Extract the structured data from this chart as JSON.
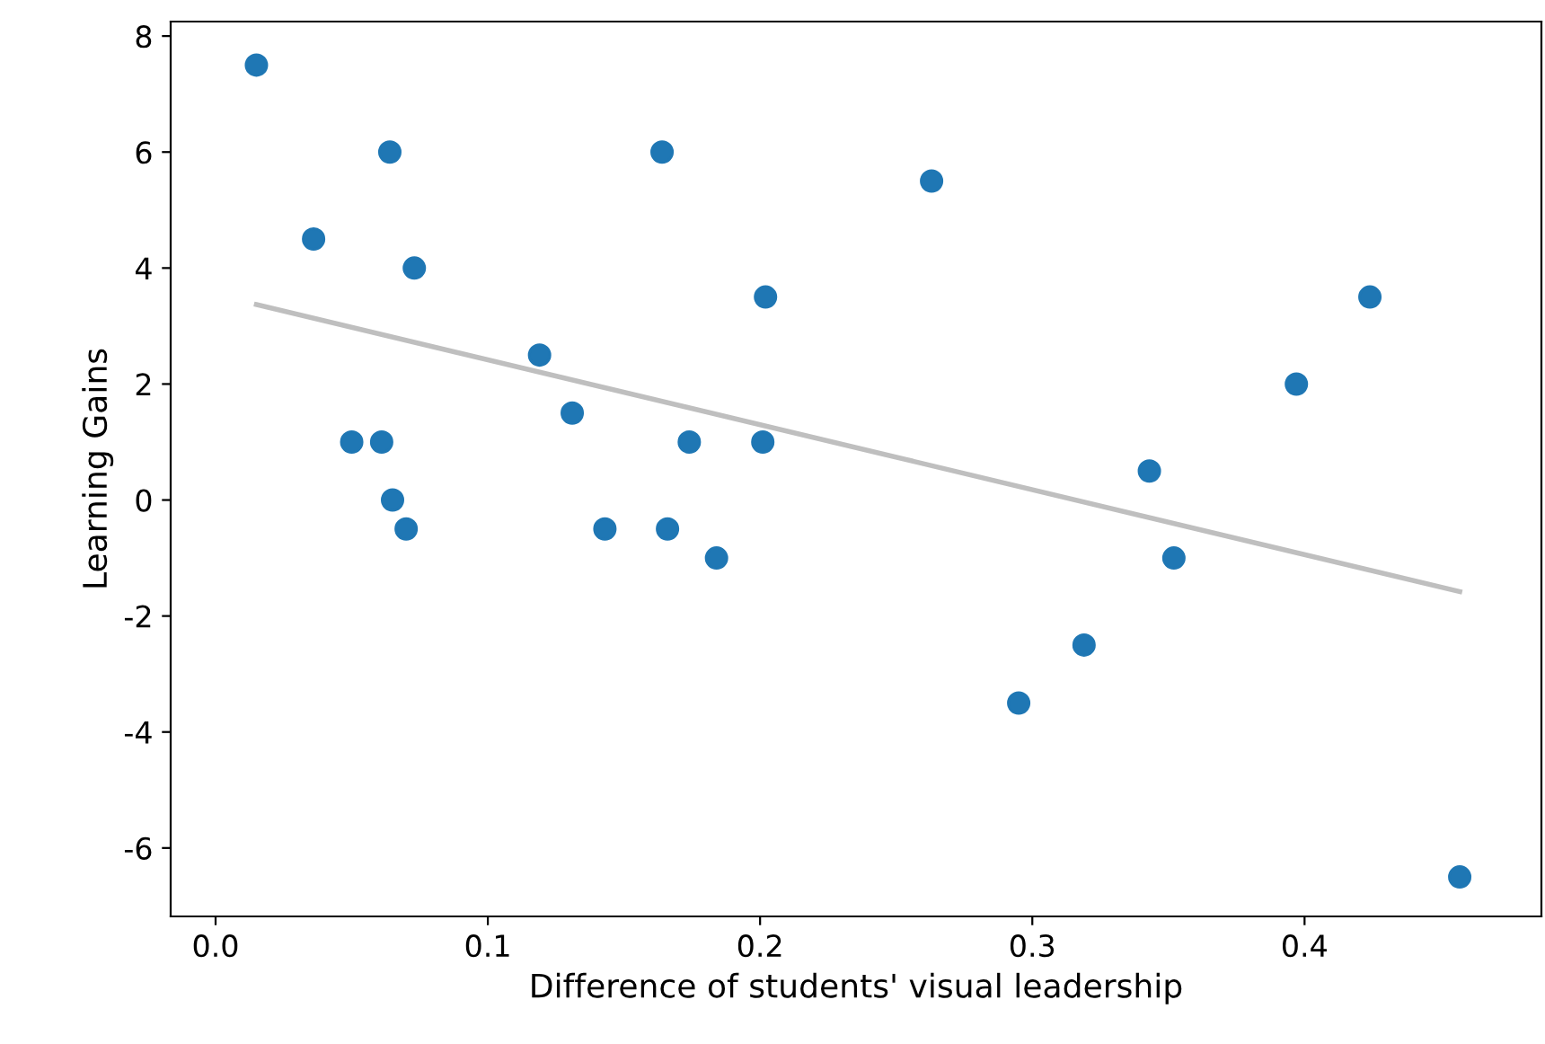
{
  "chart_data": {
    "type": "scatter",
    "xlabel": "Difference of students' visual leadership",
    "ylabel": "Learning Gains",
    "xlim": [
      -0.0165,
      0.487
    ],
    "ylim": [
      -7.18,
      8.25
    ],
    "xticks": [
      {
        "value": 0,
        "label": "0.0"
      },
      0.1,
      0.2,
      0.3,
      0.4
    ],
    "yticks": [
      -6,
      -4,
      -2,
      0,
      2,
      4,
      6,
      8
    ],
    "grid": false,
    "series": [
      {
        "type": "line",
        "marker": "none",
        "color": "#bfbfbf",
        "x": [
          0.015,
          0.457
        ],
        "values": [
          3.37,
          -1.58
        ]
      },
      {
        "marker": "circle",
        "color": "#1f77b4",
        "x": [
          0.015,
          0.036,
          0.064,
          0.073,
          0.05,
          0.061,
          0.065,
          0.07,
          0.119,
          0.131,
          0.143,
          0.164,
          0.166,
          0.174,
          0.184,
          0.201,
          0.202,
          0.263,
          0.295,
          0.319,
          0.343,
          0.352,
          0.397,
          0.424,
          0.457
        ],
        "values": [
          7.5,
          4.5,
          6,
          4,
          1,
          1,
          0,
          -0.5,
          2.5,
          1.5,
          -0.5,
          6,
          -0.5,
          1,
          -1,
          1,
          3.5,
          5.5,
          -3.5,
          -2.5,
          0.5,
          -1,
          2,
          3.5,
          -6.5
        ]
      }
    ]
  }
}
